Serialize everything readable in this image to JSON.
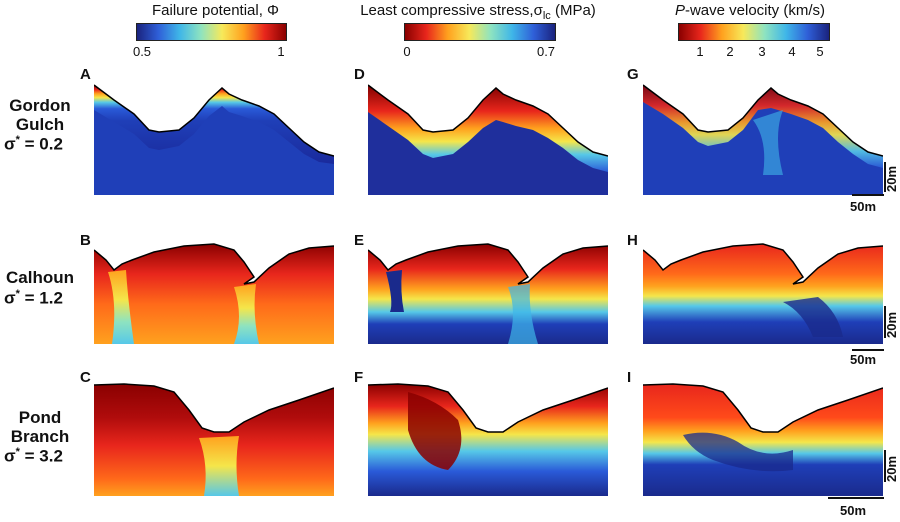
{
  "colorbars": [
    {
      "title": "Failure potential, Φ",
      "ticks": [
        "0.5",
        "1"
      ],
      "colormap": "jet"
    },
    {
      "title_prefix": "Least compressive stress,σ",
      "title_sub": "lc",
      "title_suffix": " (MPa)",
      "ticks": [
        "0",
        "0.7"
      ],
      "colormap": "jet-reversed"
    },
    {
      "title_italic": "P",
      "title_rest": "-wave velocity (km/s)",
      "ticks": [
        "1",
        "2",
        "3",
        "4",
        "5"
      ],
      "colormap": "jet-reversed"
    }
  ],
  "rows": [
    {
      "site_line1": "Gordon",
      "site_line2": "Gulch",
      "sigma_symbol": "σ",
      "sigma_star": "*",
      "sigma_value": " = 0.2",
      "panel_labels": [
        "A",
        "D",
        "G"
      ],
      "scale_vertical": "20m",
      "scale_horizontal": "50m"
    },
    {
      "site_line1": "Calhoun",
      "site_line2": "",
      "sigma_symbol": "σ",
      "sigma_star": "*",
      "sigma_value": " = 1.2",
      "panel_labels": [
        "B",
        "E",
        "H"
      ],
      "scale_vertical": "20m",
      "scale_horizontal": "50m"
    },
    {
      "site_line1": "Pond",
      "site_line2": "Branch",
      "sigma_symbol": "σ",
      "sigma_star": "*",
      "sigma_value": " = 3.2",
      "panel_labels": [
        "C",
        "F",
        "I"
      ],
      "scale_vertical": "20m",
      "scale_horizontal": "50m"
    }
  ],
  "colors": {
    "deep_red": "#7f0000",
    "red": "#e8261c",
    "orange": "#ff9a1a",
    "yellow": "#f5e64a",
    "cyan": "#56c8e8",
    "blue": "#1f4bd0",
    "navy": "#1a2a8c",
    "outline": "#000000"
  }
}
